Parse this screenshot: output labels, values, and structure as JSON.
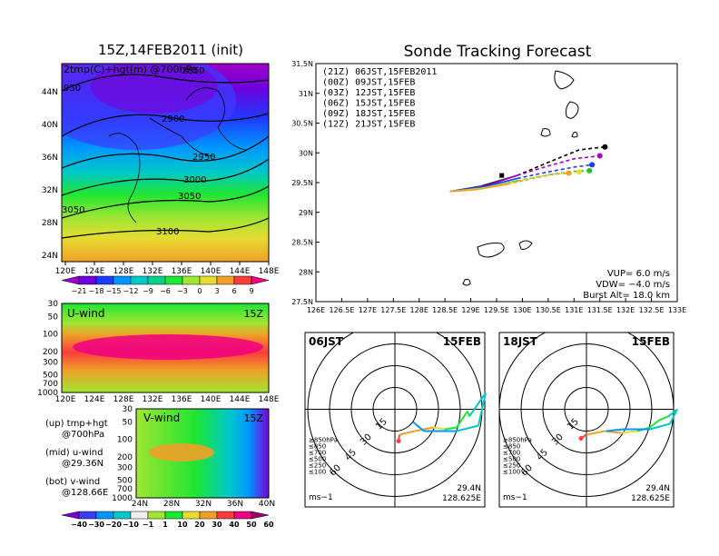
{
  "titles": {
    "left": "15Z,14FEB2011 (init)",
    "right": "Sonde Tracking Forecast"
  },
  "colors": {
    "temp_scale": [
      "#a000c8",
      "#6e00dc",
      "#1e3cff",
      "#0096ff",
      "#00c8c8",
      "#00d28c",
      "#1ee632",
      "#a0e632",
      "#e6dc32",
      "#f0a028",
      "#fa3c3c",
      "#f00082"
    ],
    "wind_scale": [
      "#7a00d6",
      "#3c3cff",
      "#0096ff",
      "#00c8c8",
      "#f0f0f0",
      "#a0e632",
      "#1ee632",
      "#e6dc32",
      "#f0a028",
      "#fa3c3c",
      "#f00082"
    ],
    "track": {
      "21Z": "#000000",
      "00Z": "#a000c8",
      "03Z": "#1e3cff",
      "06Z": "#1ec81e",
      "09Z": "#e6dc32",
      "12Z": "#f0a028"
    }
  },
  "map_panel": {
    "title_overlay": "2tmp(C)+hgt(m) @700hPa",
    "lat_labels": [
      "44N",
      "40N",
      "36N",
      "32N",
      "28N",
      "24N"
    ],
    "lon_labels": [
      "120E",
      "124E",
      "128E",
      "132E",
      "136E",
      "140E",
      "144E",
      "148E"
    ],
    "contours": [
      "2850",
      "950",
      "2900",
      "2950",
      "3000",
      "3050",
      "3050",
      "3100"
    ],
    "colorbar": [
      "−21",
      "−18",
      "−15",
      "−12",
      "−9",
      "−6",
      "−3",
      "0",
      "3",
      "6",
      "9"
    ]
  },
  "uwind_panel": {
    "label": "U-wind",
    "time": "15Z",
    "y_labels": [
      "30",
      "50",
      "100",
      "200",
      "300",
      "500",
      "700",
      "1000"
    ],
    "x_labels": [
      "120E",
      "124E",
      "128E",
      "132E",
      "136E",
      "140E",
      "144E",
      "148E"
    ]
  },
  "vwind_panel": {
    "label": "V-wind",
    "time": "15Z",
    "y_labels": [
      "30",
      "50",
      "100",
      "200",
      "300",
      "500",
      "700",
      "1000"
    ],
    "x_labels": [
      "24N",
      "28N",
      "32N",
      "36N",
      "40N"
    ],
    "colorbar": [
      "−40",
      "−30",
      "−20",
      "−10",
      "−1",
      "1",
      "10",
      "20",
      "30",
      "40",
      "50",
      "60"
    ]
  },
  "legend_text": {
    "up": [
      "(up) tmp+hgt",
      "@700hPa"
    ],
    "mid": [
      "(mid) u-wind",
      "@29.36N"
    ],
    "bot": [
      "(bot) v-wind",
      "@128.66E"
    ]
  },
  "track_panel": {
    "y_labels": [
      "31.5N",
      "31N",
      "30.5N",
      "30N",
      "29.5N",
      "29N",
      "28.5N",
      "28N",
      "27.5N"
    ],
    "x_labels": [
      "126E",
      "126.5E",
      "127E",
      "127.5E",
      "128E",
      "128.5E",
      "129E",
      "129.5E",
      "130E",
      "130.5E",
      "131E",
      "131.5E",
      "132E",
      "132.5E",
      "133E"
    ],
    "legend": [
      {
        "key": "21Z",
        "text": "(21Z)  06JST,15FEB2011"
      },
      {
        "key": "00Z",
        "text": "(00Z)  09JST,15FEB"
      },
      {
        "key": "03Z",
        "text": "(03Z)  12JST,15FEB"
      },
      {
        "key": "06Z",
        "text": "(06Z)  15JST,15FEB"
      },
      {
        "key": "09Z",
        "text": "(09Z)  18JST,15FEB"
      },
      {
        "key": "12Z",
        "text": "(12Z)  21JST,15FEB"
      }
    ],
    "params": {
      "vup": "VUP=  6.0  m/s",
      "vdw": "VDW= −4.0  m/s",
      "burst": "Burst Alt=  18.0  km"
    }
  },
  "hodo_left": {
    "time": "06JST",
    "date": "15FEB",
    "rings": [
      "15",
      "30",
      "45",
      "60"
    ],
    "levels": [
      "≥850hPa",
      "≤850",
      "≤700",
      "≤500",
      "≤250",
      "≤100"
    ],
    "unit": "ms−1",
    "lat": "29.4N",
    "lon": "128.625E"
  },
  "hodo_right": {
    "time": "18JST",
    "date": "15FEB",
    "rings": [
      "15",
      "30",
      "45",
      "60"
    ],
    "levels": [
      "≥850hPa",
      "≤850",
      "≤700",
      "≤500",
      "≤250",
      "≤100"
    ],
    "unit": "ms−1",
    "lat": "29.4N",
    "lon": "128.625E"
  },
  "chart_data": {
    "type": "line",
    "title": "Sonde Tracking Forecast",
    "xlabel": "",
    "ylabel": "",
    "xlim": [
      126,
      133
    ],
    "ylim": [
      27.5,
      31.5
    ],
    "series": [
      {
        "name": "(21Z)  06JST,15FEB2011",
        "x": [
          128.6,
          129.2,
          129.9,
          130.5,
          131.1,
          131.6
        ],
        "y": [
          29.35,
          29.44,
          29.62,
          29.84,
          30.05,
          30.1
        ]
      },
      {
        "name": "(00Z)  09JST,15FEB",
        "x": [
          128.6,
          129.3,
          129.9,
          130.5,
          131.0,
          131.5
        ],
        "y": [
          29.35,
          29.45,
          29.62,
          29.78,
          29.9,
          29.95
        ]
      },
      {
        "name": "(03Z)  12JST,15FEB",
        "x": [
          128.6,
          129.3,
          129.9,
          130.5,
          131.0,
          131.35
        ],
        "y": [
          29.35,
          29.44,
          29.57,
          29.68,
          29.76,
          29.8
        ]
      },
      {
        "name": "(06Z)  15JST,15FEB",
        "x": [
          128.6,
          129.3,
          129.9,
          130.5,
          131.0,
          131.3
        ],
        "y": [
          29.35,
          29.42,
          29.53,
          29.63,
          29.69,
          29.7
        ]
      },
      {
        "name": "(09Z)  18JST,15FEB",
        "x": [
          128.6,
          129.2,
          129.8,
          130.3,
          130.8,
          131.1
        ],
        "y": [
          29.35,
          29.4,
          29.5,
          29.6,
          29.66,
          29.68
        ]
      },
      {
        "name": "(12Z)  21JST,15FEB",
        "x": [
          128.6,
          129.1,
          129.7,
          130.2,
          130.6,
          130.9
        ],
        "y": [
          29.35,
          29.38,
          29.47,
          29.57,
          29.64,
          29.66
        ]
      }
    ]
  }
}
